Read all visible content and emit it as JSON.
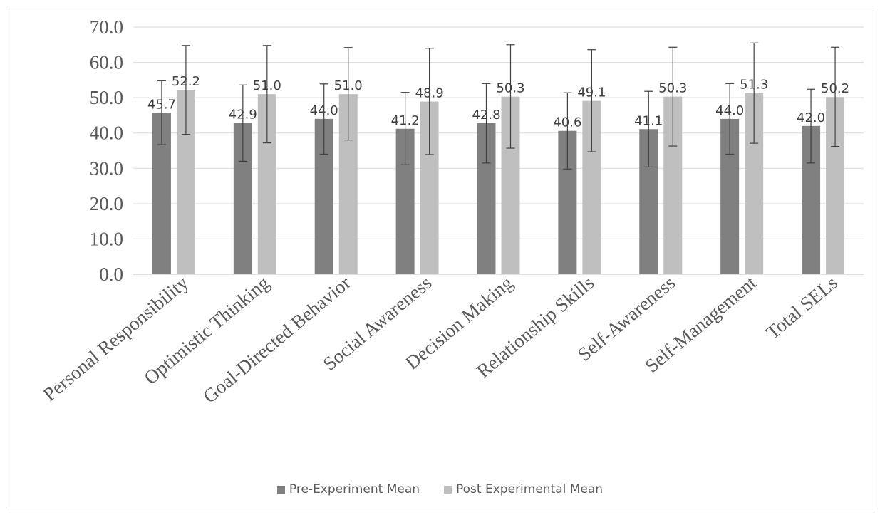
{
  "chart_data": {
    "type": "bar",
    "categories": [
      "Personal Responsibility",
      "Optimistic Thinking",
      "Goal-Directed Behavior",
      "Social Awareness",
      "Decision Making",
      "Relationship Skills",
      "Self-Awareness",
      "Self-Management",
      "Total SELs"
    ],
    "series": [
      {
        "name": "Pre-Experiment Mean",
        "color": "#808080",
        "values": [
          45.7,
          42.9,
          44.0,
          41.2,
          42.8,
          40.6,
          41.1,
          44.0,
          42.0
        ],
        "labels": [
          "45.7",
          "42.9",
          "44.0",
          "41.2",
          "42.8",
          "40.6",
          "41.1",
          "44.0",
          "42.0"
        ],
        "error_low": [
          36.7,
          32.0,
          34.0,
          31.0,
          31.5,
          29.8,
          30.4,
          34.0,
          31.5
        ],
        "error_high": [
          54.8,
          53.6,
          53.9,
          51.5,
          54.0,
          51.4,
          51.8,
          54.0,
          52.4
        ]
      },
      {
        "name": "Post Experimental Mean",
        "color": "#bfbfbf",
        "values": [
          52.2,
          51.0,
          51.0,
          48.9,
          50.3,
          49.1,
          50.3,
          51.3,
          50.2
        ],
        "labels": [
          "52.2",
          "51.0",
          "51.0",
          "48.9",
          "50.3",
          "49.1",
          "50.3",
          "51.3",
          "50.2"
        ],
        "error_low": [
          39.6,
          37.2,
          38.0,
          33.9,
          35.7,
          34.7,
          36.3,
          37.1,
          36.2
        ],
        "error_high": [
          64.8,
          64.8,
          64.2,
          64.0,
          65.0,
          63.6,
          64.3,
          65.5,
          64.3
        ]
      }
    ],
    "ylim": [
      0,
      70
    ],
    "ytick_values": [
      0,
      10,
      20,
      30,
      40,
      50,
      60,
      70
    ],
    "ytick_labels": [
      "0.0",
      "10.0",
      "20.0",
      "30.0",
      "40.0",
      "50.0",
      "60.0",
      "70.0"
    ],
    "grid": true,
    "legend_position": "bottom",
    "title": "",
    "xlabel": "",
    "ylabel": ""
  }
}
